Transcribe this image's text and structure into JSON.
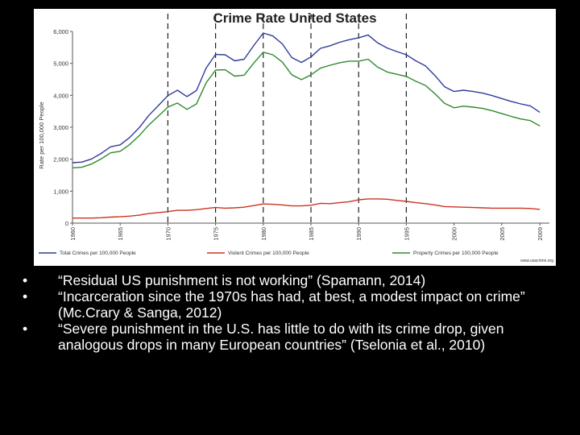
{
  "slide": {
    "bullets": [
      "“Residual US punishment is not working” (Spamann, 2014)",
      "“Incarceration since the 1970s has had, at best, a modest impact on crime” (Mc.Crary & Sanga, 2012)",
      "“Severe punishment in the U.S. has little to do with its crime drop, given analogous drops in many European countries” (Tselonia et al., 2010)"
    ],
    "bullet_symbol": "•"
  },
  "chart_data": {
    "type": "line",
    "title": "Crime Rate United States",
    "ylabel": "Rate per 100,000 People",
    "xlabel": "",
    "xlim": [
      1960,
      2010
    ],
    "ylim": [
      0,
      6000
    ],
    "y_ticks": [
      0,
      1000,
      2000,
      3000,
      4000,
      5000,
      6000
    ],
    "y_tick_labels": [
      "0",
      "1,000",
      "2,000",
      "3,000",
      "4,000",
      "5,000",
      "6,000"
    ],
    "x_ticks": [
      1960,
      1965,
      1970,
      1975,
      1980,
      1985,
      1990,
      1995,
      2000,
      2005,
      2009
    ],
    "x_tick_labels": [
      "1960",
      "1965",
      "1970",
      "1975",
      "1980",
      "1985",
      "1990",
      "1995",
      "2000",
      "2005",
      "2009"
    ],
    "dashed_vertical_lines": [
      1970,
      1975,
      1980,
      1985,
      1990,
      1995
    ],
    "grid": "dashed vertical at 1970-1995",
    "legend_position": "bottom",
    "credit": "www.usacrime.org",
    "series": [
      {
        "name": "Total Crimes per 100,000 People",
        "color": "#2e3b99",
        "x": [
          1960,
          1961,
          1962,
          1963,
          1964,
          1965,
          1966,
          1967,
          1968,
          1969,
          1970,
          1971,
          1972,
          1973,
          1974,
          1975,
          1976,
          1977,
          1978,
          1979,
          1980,
          1981,
          1982,
          1983,
          1984,
          1985,
          1986,
          1987,
          1988,
          1989,
          1990,
          1991,
          1992,
          1993,
          1994,
          1995,
          1996,
          1997,
          1998,
          1999,
          2000,
          2001,
          2002,
          2003,
          2004,
          2005,
          2006,
          2007,
          2008,
          2009
        ],
        "y": [
          1890,
          1910,
          2010,
          2180,
          2390,
          2450,
          2680,
          2990,
          3370,
          3680,
          3990,
          4160,
          3960,
          4150,
          4850,
          5280,
          5270,
          5080,
          5130,
          5560,
          5950,
          5860,
          5610,
          5180,
          5030,
          5200,
          5470,
          5550,
          5660,
          5740,
          5800,
          5890,
          5640,
          5480,
          5370,
          5270,
          5080,
          4920,
          4620,
          4270,
          4120,
          4160,
          4120,
          4070,
          3990,
          3900,
          3810,
          3730,
          3670,
          3470
        ]
      },
      {
        "name": "Violent Crimes per 100,000 People",
        "color": "#cc3322",
        "x": [
          1960,
          1961,
          1962,
          1963,
          1964,
          1965,
          1966,
          1967,
          1968,
          1969,
          1970,
          1971,
          1972,
          1973,
          1974,
          1975,
          1976,
          1977,
          1978,
          1979,
          1980,
          1981,
          1982,
          1983,
          1984,
          1985,
          1986,
          1987,
          1988,
          1989,
          1990,
          1991,
          1992,
          1993,
          1994,
          1995,
          1996,
          1997,
          1998,
          1999,
          2000,
          2001,
          2002,
          2003,
          2004,
          2005,
          2006,
          2007,
          2008,
          2009
        ],
        "y": [
          160,
          160,
          160,
          170,
          190,
          200,
          220,
          250,
          300,
          330,
          360,
          400,
          400,
          420,
          460,
          490,
          470,
          480,
          500,
          550,
          600,
          590,
          570,
          540,
          540,
          560,
          620,
          610,
          640,
          670,
          730,
          760,
          760,
          750,
          710,
          680,
          640,
          610,
          570,
          520,
          510,
          500,
          490,
          480,
          470,
          470,
          470,
          470,
          460,
          430
        ]
      },
      {
        "name": "Property Crimes per 100,000 People",
        "color": "#2e8a2e",
        "x": [
          1960,
          1961,
          1962,
          1963,
          1964,
          1965,
          1966,
          1967,
          1968,
          1969,
          1970,
          1971,
          1972,
          1973,
          1974,
          1975,
          1976,
          1977,
          1978,
          1979,
          1980,
          1981,
          1982,
          1983,
          1984,
          1985,
          1986,
          1987,
          1988,
          1989,
          1990,
          1991,
          1992,
          1993,
          1994,
          1995,
          1996,
          1997,
          1998,
          1999,
          2000,
          2001,
          2002,
          2003,
          2004,
          2005,
          2006,
          2007,
          2008,
          2009
        ],
        "y": [
          1730,
          1750,
          1850,
          2010,
          2200,
          2250,
          2460,
          2740,
          3070,
          3350,
          3630,
          3760,
          3560,
          3730,
          4390,
          4790,
          4800,
          4600,
          4630,
          5010,
          5350,
          5270,
          5040,
          4640,
          4490,
          4640,
          4850,
          4940,
          5020,
          5070,
          5070,
          5130,
          4880,
          4730,
          4660,
          4590,
          4440,
          4310,
          4050,
          3750,
          3610,
          3660,
          3630,
          3590,
          3520,
          3430,
          3340,
          3260,
          3210,
          3040
        ]
      }
    ]
  }
}
